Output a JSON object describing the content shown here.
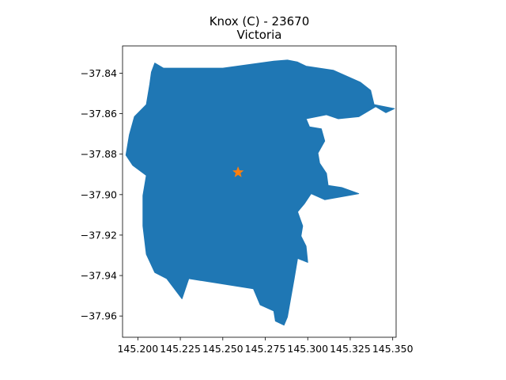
{
  "title": {
    "line1": "Knox (C) - 23670",
    "line2": "Victoria"
  },
  "colors": {
    "region": "#1f77b4",
    "marker": "#ff7f0e",
    "axis": "#000000",
    "background": "#ffffff"
  },
  "chart_data": {
    "type": "map",
    "xlim": [
      145.191,
      145.352
    ],
    "ylim": [
      -37.9705,
      -37.8265
    ],
    "x_ticks": [
      145.2,
      145.225,
      145.25,
      145.275,
      145.3,
      145.325,
      145.35
    ],
    "x_tick_labels": [
      "145.200",
      "145.225",
      "145.250",
      "145.275",
      "145.300",
      "145.325",
      "145.350"
    ],
    "y_ticks": [
      -37.84,
      -37.86,
      -37.88,
      -37.9,
      -37.92,
      -37.94,
      -37.96
    ],
    "y_tick_labels": [
      "−37.84",
      "−37.86",
      "−37.88",
      "−37.90",
      "−37.92",
      "−37.94",
      "−37.96"
    ],
    "marker": {
      "x": 145.259,
      "y": -37.889,
      "symbol": "star"
    },
    "boundary": [
      [
        145.21,
        -37.835
      ],
      [
        145.215,
        -37.8375
      ],
      [
        145.25,
        -37.8375
      ],
      [
        145.28,
        -37.834
      ],
      [
        145.288,
        -37.8335
      ],
      [
        145.294,
        -37.8345
      ],
      [
        145.299,
        -37.8365
      ],
      [
        145.315,
        -37.8385
      ],
      [
        145.331,
        -37.8445
      ],
      [
        145.337,
        -37.8485
      ],
      [
        145.339,
        -37.8555
      ],
      [
        145.351,
        -37.8575
      ],
      [
        145.346,
        -37.8595
      ],
      [
        145.34,
        -37.8565
      ],
      [
        145.33,
        -37.8615
      ],
      [
        145.318,
        -37.8625
      ],
      [
        145.311,
        -37.8605
      ],
      [
        145.299,
        -37.8625
      ],
      [
        145.301,
        -37.8665
      ],
      [
        145.308,
        -37.8675
      ],
      [
        145.31,
        -37.8735
      ],
      [
        145.306,
        -37.8795
      ],
      [
        145.307,
        -37.8845
      ],
      [
        145.311,
        -37.8895
      ],
      [
        145.312,
        -37.8955
      ],
      [
        145.32,
        -37.8965
      ],
      [
        145.33,
        -37.8995
      ],
      [
        145.31,
        -37.9025
      ],
      [
        145.302,
        -37.8995
      ],
      [
        145.298,
        -37.9045
      ],
      [
        145.294,
        -37.9085
      ],
      [
        145.297,
        -37.9155
      ],
      [
        145.296,
        -37.9205
      ],
      [
        145.299,
        -37.9255
      ],
      [
        145.3,
        -37.9335
      ],
      [
        145.294,
        -37.9315
      ],
      [
        145.292,
        -37.9415
      ],
      [
        145.288,
        -37.9605
      ],
      [
        145.286,
        -37.9645
      ],
      [
        145.281,
        -37.9625
      ],
      [
        145.28,
        -37.9575
      ],
      [
        145.272,
        -37.9545
      ],
      [
        145.268,
        -37.9465
      ],
      [
        145.23,
        -37.9415
      ],
      [
        145.226,
        -37.9515
      ],
      [
        145.217,
        -37.9415
      ],
      [
        145.21,
        -37.9385
      ],
      [
        145.205,
        -37.9295
      ],
      [
        145.203,
        -37.9155
      ],
      [
        145.203,
        -37.9005
      ],
      [
        145.205,
        -37.8905
      ],
      [
        145.197,
        -37.8855
      ],
      [
        145.193,
        -37.8805
      ],
      [
        145.195,
        -37.8705
      ],
      [
        145.198,
        -37.8615
      ],
      [
        145.205,
        -37.8555
      ],
      [
        145.207,
        -37.8455
      ],
      [
        145.208,
        -37.8395
      ]
    ]
  }
}
